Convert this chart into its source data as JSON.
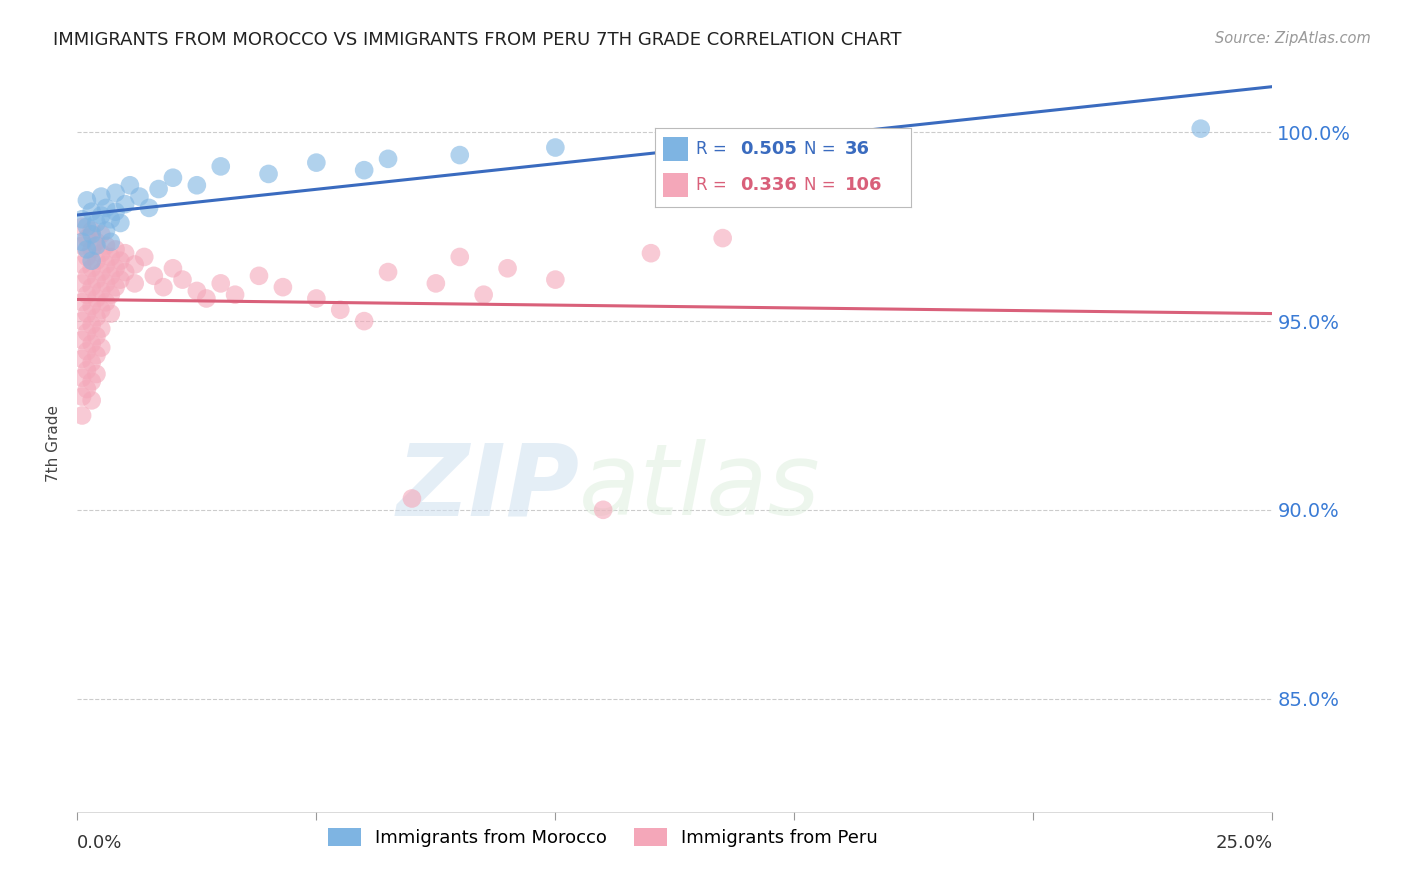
{
  "title": "IMMIGRANTS FROM MOROCCO VS IMMIGRANTS FROM PERU 7TH GRADE CORRELATION CHART",
  "source": "Source: ZipAtlas.com",
  "ylabel": "7th Grade",
  "x_min": 0.0,
  "x_max": 0.25,
  "y_min": 0.82,
  "y_max": 1.015,
  "ytick_labels": [
    "85.0%",
    "90.0%",
    "95.0%",
    "100.0%"
  ],
  "ytick_values": [
    0.85,
    0.9,
    0.95,
    1.0
  ],
  "xtick_values": [
    0.0,
    0.05,
    0.1,
    0.15,
    0.2,
    0.25
  ],
  "morocco_color": "#7eb4e2",
  "peru_color": "#f4a7b9",
  "morocco_line_color": "#3a6bbf",
  "peru_line_color": "#d9607a",
  "watermark_zip": "ZIP",
  "watermark_atlas": "atlas",
  "background_color": "#ffffff",
  "grid_color": "#cccccc",
  "morocco_points": [
    [
      0.001,
      0.977
    ],
    [
      0.001,
      0.971
    ],
    [
      0.002,
      0.982
    ],
    [
      0.002,
      0.975
    ],
    [
      0.002,
      0.969
    ],
    [
      0.003,
      0.979
    ],
    [
      0.003,
      0.973
    ],
    [
      0.003,
      0.966
    ],
    [
      0.004,
      0.976
    ],
    [
      0.004,
      0.97
    ],
    [
      0.005,
      0.983
    ],
    [
      0.005,
      0.978
    ],
    [
      0.006,
      0.98
    ],
    [
      0.006,
      0.974
    ],
    [
      0.007,
      0.977
    ],
    [
      0.007,
      0.971
    ],
    [
      0.008,
      0.984
    ],
    [
      0.008,
      0.979
    ],
    [
      0.009,
      0.976
    ],
    [
      0.01,
      0.981
    ],
    [
      0.011,
      0.986
    ],
    [
      0.013,
      0.983
    ],
    [
      0.015,
      0.98
    ],
    [
      0.017,
      0.985
    ],
    [
      0.02,
      0.988
    ],
    [
      0.025,
      0.986
    ],
    [
      0.03,
      0.991
    ],
    [
      0.04,
      0.989
    ],
    [
      0.05,
      0.992
    ],
    [
      0.06,
      0.99
    ],
    [
      0.065,
      0.993
    ],
    [
      0.08,
      0.994
    ],
    [
      0.1,
      0.996
    ],
    [
      0.13,
      0.997
    ],
    [
      0.17,
      0.998
    ],
    [
      0.235,
      1.001
    ]
  ],
  "peru_points": [
    [
      0.001,
      0.975
    ],
    [
      0.001,
      0.97
    ],
    [
      0.001,
      0.965
    ],
    [
      0.001,
      0.96
    ],
    [
      0.001,
      0.955
    ],
    [
      0.001,
      0.95
    ],
    [
      0.001,
      0.945
    ],
    [
      0.001,
      0.94
    ],
    [
      0.001,
      0.935
    ],
    [
      0.001,
      0.93
    ],
    [
      0.001,
      0.925
    ],
    [
      0.002,
      0.972
    ],
    [
      0.002,
      0.967
    ],
    [
      0.002,
      0.962
    ],
    [
      0.002,
      0.957
    ],
    [
      0.002,
      0.952
    ],
    [
      0.002,
      0.947
    ],
    [
      0.002,
      0.942
    ],
    [
      0.002,
      0.937
    ],
    [
      0.002,
      0.932
    ],
    [
      0.003,
      0.974
    ],
    [
      0.003,
      0.969
    ],
    [
      0.003,
      0.964
    ],
    [
      0.003,
      0.959
    ],
    [
      0.003,
      0.954
    ],
    [
      0.003,
      0.949
    ],
    [
      0.003,
      0.944
    ],
    [
      0.003,
      0.939
    ],
    [
      0.003,
      0.934
    ],
    [
      0.003,
      0.929
    ],
    [
      0.004,
      0.971
    ],
    [
      0.004,
      0.966
    ],
    [
      0.004,
      0.961
    ],
    [
      0.004,
      0.956
    ],
    [
      0.004,
      0.951
    ],
    [
      0.004,
      0.946
    ],
    [
      0.004,
      0.941
    ],
    [
      0.004,
      0.936
    ],
    [
      0.005,
      0.973
    ],
    [
      0.005,
      0.968
    ],
    [
      0.005,
      0.963
    ],
    [
      0.005,
      0.958
    ],
    [
      0.005,
      0.953
    ],
    [
      0.005,
      0.948
    ],
    [
      0.005,
      0.943
    ],
    [
      0.006,
      0.97
    ],
    [
      0.006,
      0.965
    ],
    [
      0.006,
      0.96
    ],
    [
      0.006,
      0.955
    ],
    [
      0.007,
      0.967
    ],
    [
      0.007,
      0.962
    ],
    [
      0.007,
      0.957
    ],
    [
      0.007,
      0.952
    ],
    [
      0.008,
      0.969
    ],
    [
      0.008,
      0.964
    ],
    [
      0.008,
      0.959
    ],
    [
      0.009,
      0.966
    ],
    [
      0.009,
      0.961
    ],
    [
      0.01,
      0.968
    ],
    [
      0.01,
      0.963
    ],
    [
      0.012,
      0.965
    ],
    [
      0.012,
      0.96
    ],
    [
      0.014,
      0.967
    ],
    [
      0.016,
      0.962
    ],
    [
      0.018,
      0.959
    ],
    [
      0.02,
      0.964
    ],
    [
      0.022,
      0.961
    ],
    [
      0.025,
      0.958
    ],
    [
      0.027,
      0.956
    ],
    [
      0.03,
      0.96
    ],
    [
      0.033,
      0.957
    ],
    [
      0.038,
      0.962
    ],
    [
      0.043,
      0.959
    ],
    [
      0.05,
      0.956
    ],
    [
      0.055,
      0.953
    ],
    [
      0.06,
      0.95
    ],
    [
      0.065,
      0.963
    ],
    [
      0.07,
      0.903
    ],
    [
      0.075,
      0.96
    ],
    [
      0.08,
      0.967
    ],
    [
      0.085,
      0.957
    ],
    [
      0.09,
      0.964
    ],
    [
      0.1,
      0.961
    ],
    [
      0.11,
      0.9
    ],
    [
      0.12,
      0.968
    ],
    [
      0.135,
      0.972
    ]
  ]
}
